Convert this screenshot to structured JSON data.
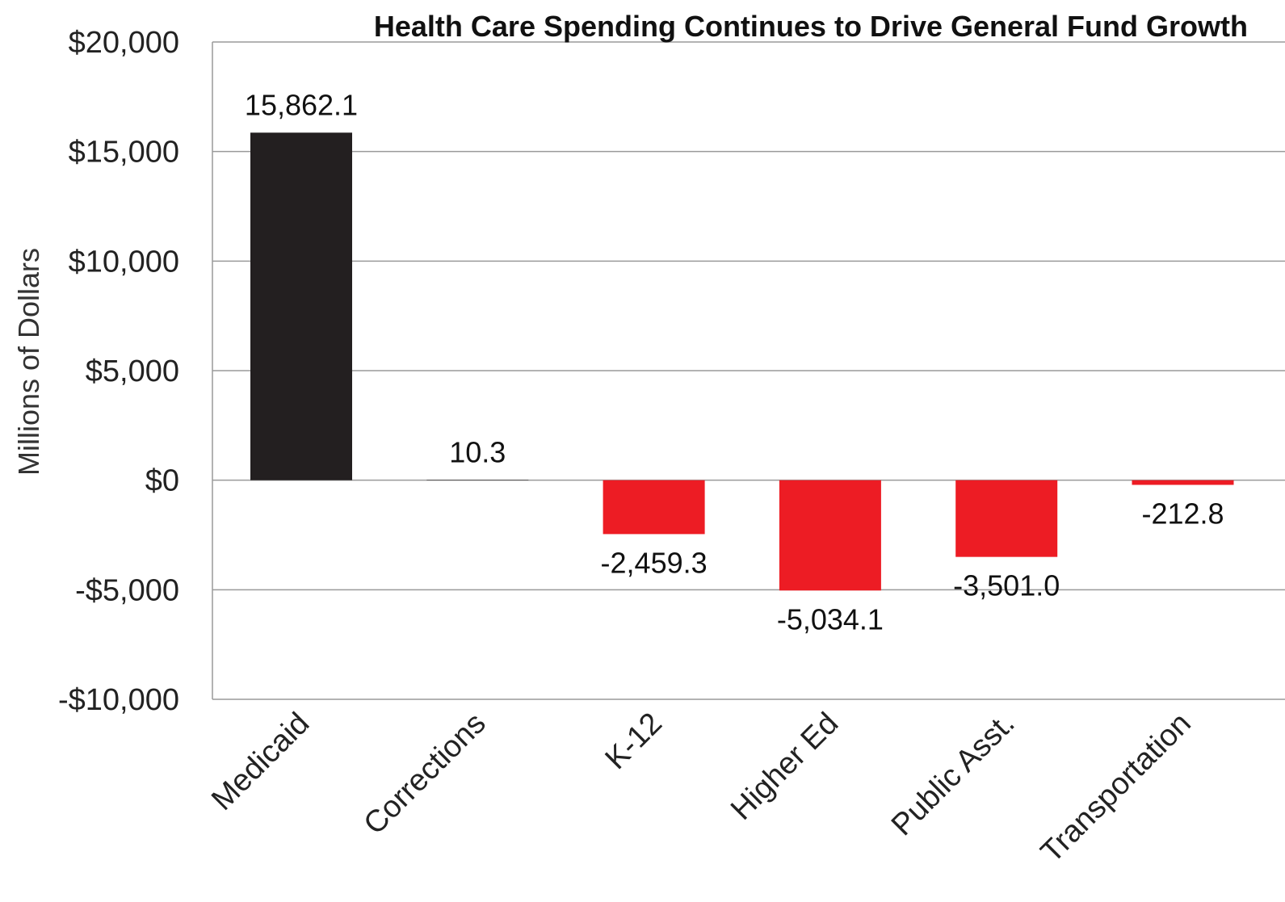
{
  "chart_data": {
    "type": "bar",
    "title": "Health Care Spending Continues to Drive General Fund Growth",
    "ylabel": "Millions of Dollars",
    "xlabel": "",
    "categories": [
      "Medicaid",
      "Corrections",
      "K-12",
      "Higher Ed",
      "Public Asst.",
      "Transportation"
    ],
    "values": [
      15862.1,
      10.3,
      -2459.3,
      -5034.1,
      -3501.0,
      -212.8
    ],
    "data_labels": [
      "15,862.1",
      "10.3",
      "-2,459.3",
      "-5,034.1",
      "-3,501.0",
      "-212.8"
    ],
    "ylim": [
      -10000,
      20000
    ],
    "yticks": [
      20000,
      15000,
      10000,
      5000,
      0,
      -5000,
      -10000
    ],
    "ytick_labels": [
      "$20,000",
      "$15,000",
      "$10,000",
      "$5,000",
      "$0",
      "-$5,000",
      "-$10,000"
    ],
    "grid": true,
    "legend": "none",
    "colors": {
      "positive": "#231f20",
      "negative": "#ed1c24"
    }
  }
}
